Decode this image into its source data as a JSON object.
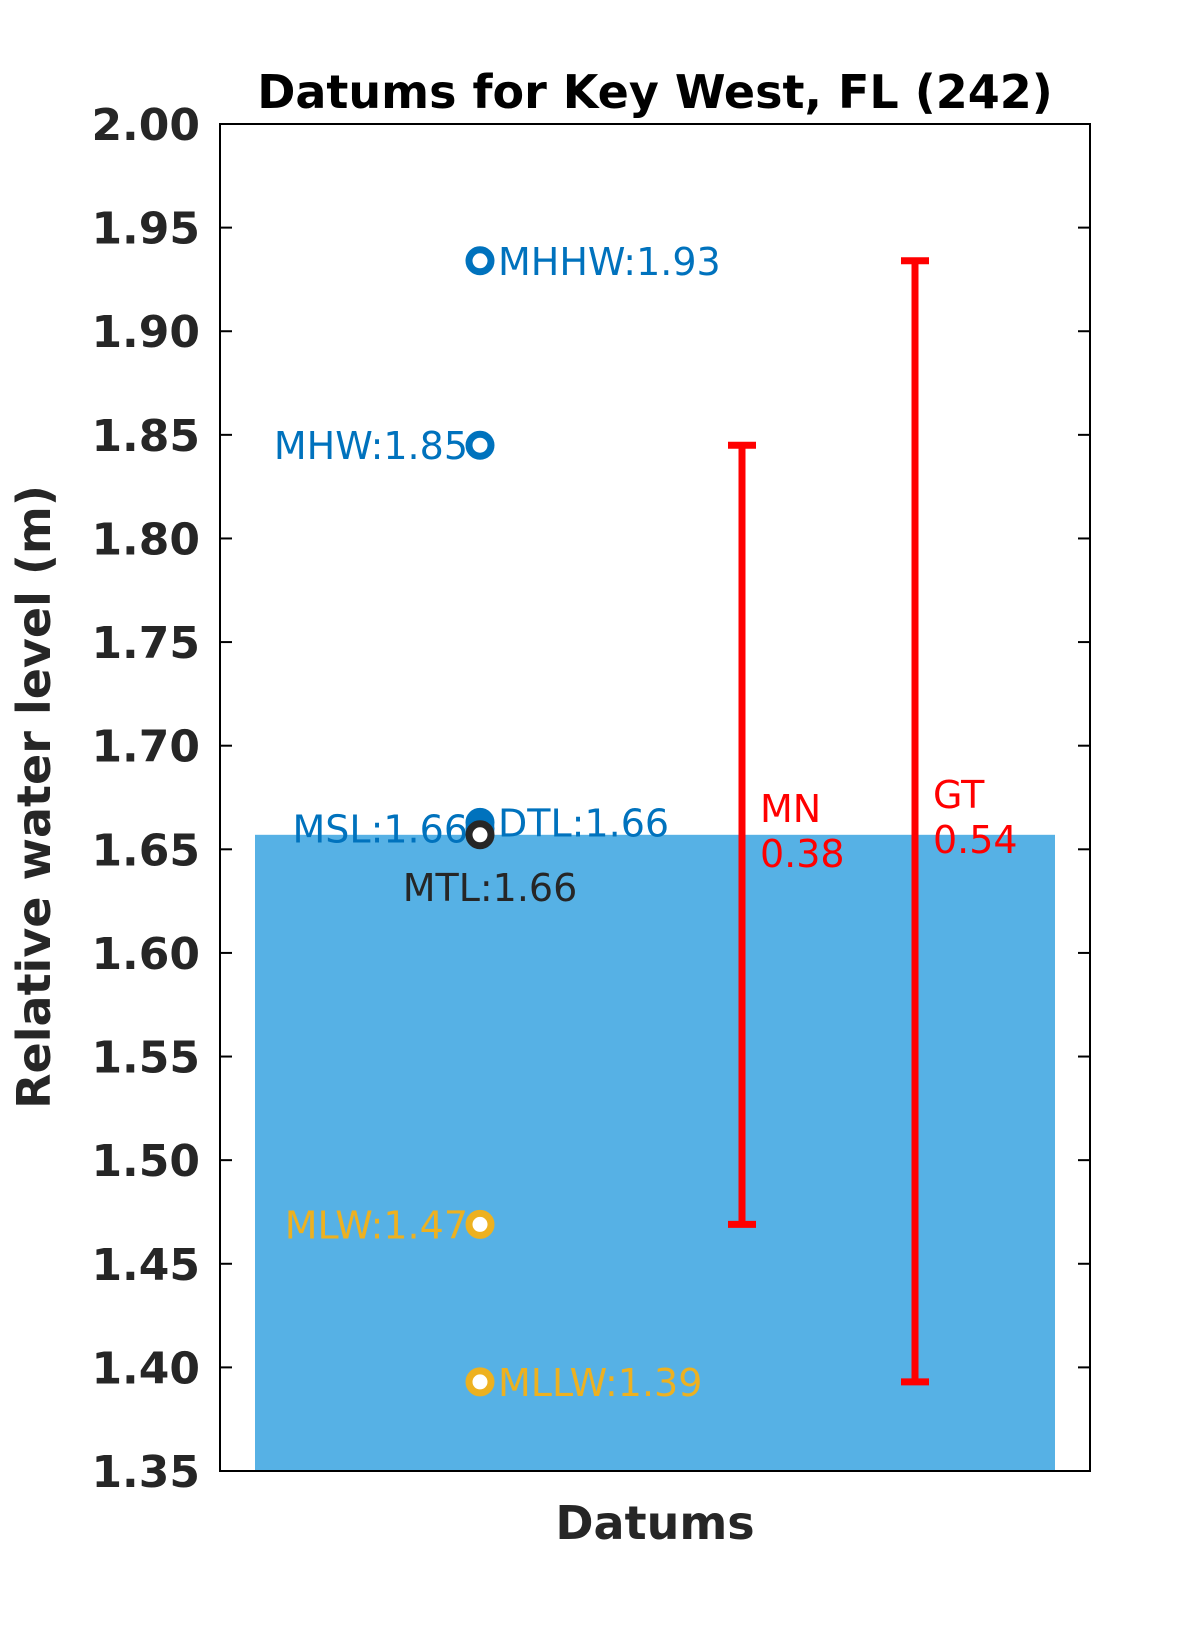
{
  "chart_data": {
    "type": "scatter",
    "title": "Datums for Key West, FL (242)",
    "xlabel": "Datums",
    "ylabel": "Relative water level (m)",
    "ylim": [
      1.35,
      2.0
    ],
    "yticks": [
      "1.35",
      "1.40",
      "1.45",
      "1.50",
      "1.55",
      "1.60",
      "1.65",
      "1.70",
      "1.75",
      "1.80",
      "1.85",
      "1.90",
      "1.95",
      "2.00"
    ],
    "grid": false,
    "fill": {
      "from": 1.35,
      "to": 1.657,
      "color": "#56B1E5"
    },
    "datums": [
      {
        "name": "MHHW",
        "value": 1.934,
        "label": "MHHW:1.93",
        "color": "#0072BD",
        "label_side": "right"
      },
      {
        "name": "MHW",
        "value": 1.845,
        "label": "MHW:1.85",
        "color": "#0072BD",
        "label_side": "left"
      },
      {
        "name": "DTL",
        "value": 1.663,
        "label": "DTL:1.66",
        "color": "#0072BD",
        "label_side": "right"
      },
      {
        "name": "MSL",
        "value": 1.66,
        "label": "MSL:1.66",
        "color": "#0072BD",
        "label_side": "left"
      },
      {
        "name": "MTL",
        "value": 1.657,
        "label": "MTL:1.66",
        "color": "#262626",
        "label_side": "below"
      },
      {
        "name": "MLW",
        "value": 1.469,
        "label": "MLW:1.47",
        "color": "#EDB120",
        "label_side": "left"
      },
      {
        "name": "MLLW",
        "value": 1.393,
        "label": "MLLW:1.39",
        "color": "#EDB120",
        "label_side": "right"
      }
    ],
    "ranges": [
      {
        "name": "MN",
        "value_label": "0.38",
        "from": 1.469,
        "to": 1.845,
        "color": "#ff0000"
      },
      {
        "name": "GT",
        "value_label": "0.54",
        "from": 1.393,
        "to": 1.934,
        "color": "#ff0000"
      }
    ]
  }
}
